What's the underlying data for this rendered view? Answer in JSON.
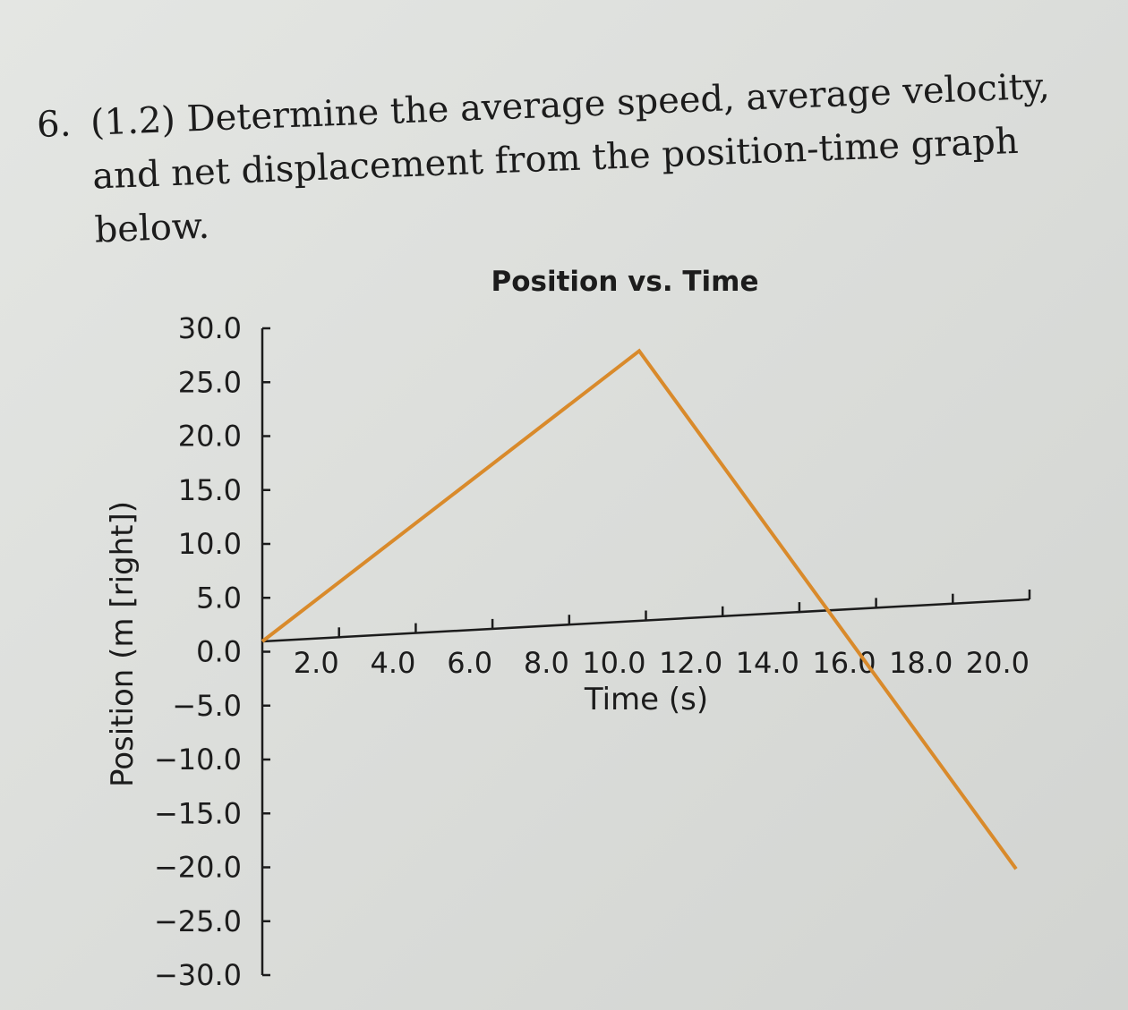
{
  "question": {
    "number": "6.",
    "text": "(1.2) Determine the average speed, average velocity, and net displacement from the position-time graph below."
  },
  "chart_data": {
    "type": "line",
    "title": "Position vs. Time",
    "xlabel": "Time (s)",
    "ylabel": "Position (m [right])",
    "xlim": [
      0,
      20
    ],
    "ylim": [
      -30,
      30
    ],
    "x_ticks": [
      "2.0",
      "4.0",
      "6.0",
      "8.0",
      "10.0",
      "12.0",
      "14.0",
      "16.0",
      "18.0",
      "20.0"
    ],
    "x_tick_values": [
      2,
      4,
      6,
      8,
      10,
      12,
      14,
      16,
      18,
      20
    ],
    "y_ticks": [
      "30.0",
      "25.0",
      "20.0",
      "15.0",
      "10.0",
      "5.0",
      "0.0",
      "−5.0",
      "−10.0",
      "−15.0",
      "−20.0",
      "−25.0",
      "−30.0"
    ],
    "y_tick_values": [
      30,
      25,
      20,
      15,
      10,
      5,
      0,
      -5,
      -10,
      -15,
      -20,
      -25,
      -30
    ],
    "grid": false,
    "series": [
      {
        "x": [
          0,
          10,
          20
        ],
        "y": [
          0,
          25,
          -25
        ],
        "color": "#d98a2b"
      }
    ]
  }
}
